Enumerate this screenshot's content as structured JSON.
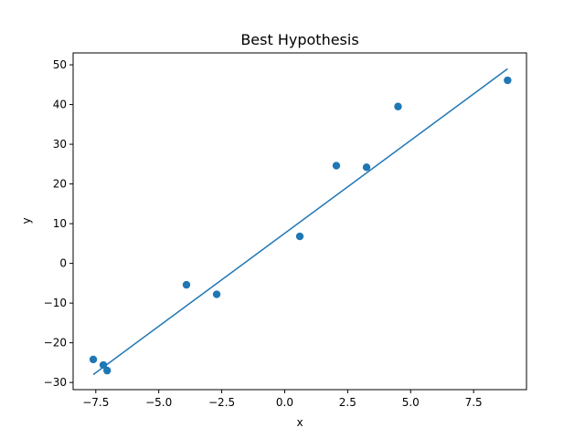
{
  "chart_data": {
    "type": "scatter",
    "title": "Best Hypothesis",
    "xlabel": "x",
    "ylabel": "y",
    "xlim": [
      -8.4,
      9.6
    ],
    "ylim": [
      -31.8,
      53.0
    ],
    "xticks": [
      -7.5,
      -5.0,
      -2.5,
      0.0,
      2.5,
      5.0,
      7.5
    ],
    "xtick_labels": [
      "−7.5",
      "−5.0",
      "−2.5",
      "0.0",
      "2.5",
      "5.0",
      "7.5"
    ],
    "yticks": [
      -30,
      -20,
      -10,
      0,
      10,
      20,
      30,
      40,
      50
    ],
    "ytick_labels": [
      "−30",
      "−20",
      "−10",
      "0",
      "10",
      "20",
      "30",
      "40",
      "50"
    ],
    "grid": false,
    "color": "#1f77b4",
    "series": [
      {
        "type": "scatter",
        "x": [
          -7.6,
          -7.2,
          -7.05,
          -3.9,
          -2.7,
          0.6,
          2.05,
          3.25,
          4.5,
          8.85
        ],
        "y": [
          -24.2,
          -25.6,
          -27.0,
          -5.4,
          -7.8,
          6.8,
          24.6,
          24.2,
          39.5,
          46.1
        ]
      },
      {
        "type": "line",
        "x": [
          -7.6,
          8.85
        ],
        "y": [
          -28.0,
          49.0
        ]
      }
    ]
  }
}
